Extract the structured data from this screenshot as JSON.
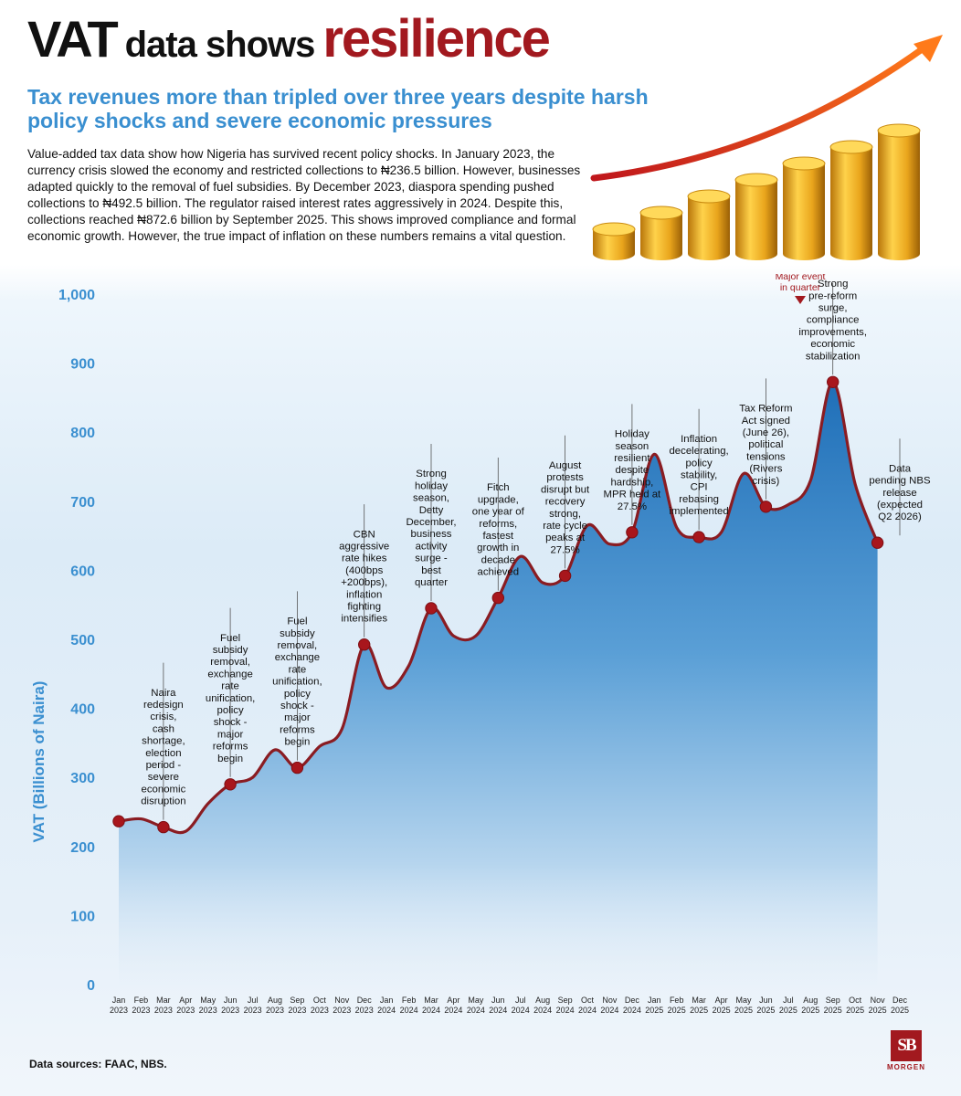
{
  "header": {
    "title_part1": "VAT",
    "title_part2": "data shows",
    "title_part3": "resilience",
    "subtitle": "Tax revenues more than tripled over three years despite harsh policy shocks and severe economic pressures",
    "lead": "Value-added tax data show how Nigeria has survived recent policy shocks. In January 2023, the currency crisis slowed the economy and restricted collections to ₦236.5 billion. However, businesses adapted quickly to the removal of fuel subsidies. By December 2023, diaspora spending pushed collections to ₦492.5 billion. The regulator raised interest rates aggressively in 2024. Despite this, collections reached ₦872.6 billion by September 2025. This shows improved compliance and formal economic growth. However, the true impact of inflation on these numbers remains a vital question."
  },
  "colors": {
    "accent_red": "#a2191f",
    "accent_blue": "#3a8fd0",
    "line": "#8a1c22",
    "marker": "#a8161c",
    "area_top": "#2f7fc6"
  },
  "icons": {
    "illustration": "rising-coin-stacks-with-arrow-icon",
    "logo": "sb-morgen-logo"
  },
  "chart_data": {
    "type": "area",
    "ylabel": "VAT (Billions of Naira)",
    "ylim": [
      0,
      1000
    ],
    "yticks": [
      "0",
      "100",
      "200",
      "300",
      "400",
      "500",
      "600",
      "700",
      "800",
      "900",
      "1,000"
    ],
    "grid": false,
    "categories": [
      [
        "Jan",
        "2023"
      ],
      [
        "Feb",
        "2023"
      ],
      [
        "Mar",
        "2023"
      ],
      [
        "Apr",
        "2023"
      ],
      [
        "May",
        "2023"
      ],
      [
        "Jun",
        "2023"
      ],
      [
        "Jul",
        "2023"
      ],
      [
        "Aug",
        "2023"
      ],
      [
        "Sep",
        "2023"
      ],
      [
        "Oct",
        "2023"
      ],
      [
        "Nov",
        "2023"
      ],
      [
        "Dec",
        "2023"
      ],
      [
        "Jan",
        "2024"
      ],
      [
        "Feb",
        "2024"
      ],
      [
        "Mar",
        "2024"
      ],
      [
        "Apr",
        "2024"
      ],
      [
        "May",
        "2024"
      ],
      [
        "Jun",
        "2024"
      ],
      [
        "Jul",
        "2024"
      ],
      [
        "Aug",
        "2024"
      ],
      [
        "Sep",
        "2024"
      ],
      [
        "Oct",
        "2024"
      ],
      [
        "Nov",
        "2024"
      ],
      [
        "Dec",
        "2024"
      ],
      [
        "Jan",
        "2025"
      ],
      [
        "Feb",
        "2025"
      ],
      [
        "Mar",
        "2025"
      ],
      [
        "Apr",
        "2025"
      ],
      [
        "May",
        "2025"
      ],
      [
        "Jun",
        "2025"
      ],
      [
        "Jul",
        "2025"
      ],
      [
        "Aug",
        "2025"
      ],
      [
        "Sep",
        "2025"
      ],
      [
        "Oct",
        "2025"
      ],
      [
        "Nov",
        "2025"
      ],
      [
        "Dec",
        "2025"
      ]
    ],
    "values": [
      236.5,
      240,
      228,
      222,
      262,
      290,
      300,
      340,
      314,
      345,
      370,
      492.5,
      430,
      462,
      545,
      505,
      505,
      560,
      620,
      582,
      592,
      665,
      638,
      655,
      768,
      662,
      648,
      655,
      740,
      692,
      695,
      730,
      872.6,
      725,
      640,
      null
    ],
    "markers": [
      0,
      2,
      5,
      8,
      11,
      14,
      17,
      20,
      23,
      26,
      29,
      32,
      34
    ],
    "annotations": [
      {
        "index": 2,
        "text": "Naira redesign crisis, cash shortage, election period - severe economic disruption"
      },
      {
        "index": 5,
        "text": "Fuel subsidy removal, exchange rate unification, policy shock - major reforms begin"
      },
      {
        "index": 8,
        "text": "Fuel subsidy removal, exchange rate unification, policy shock - major reforms begin"
      },
      {
        "index": 11,
        "text": "CBN aggressive rate hikes (400bps +200bps), inflation fighting intensifies"
      },
      {
        "index": 14,
        "text": "Strong holiday season, Detty December, business activity surge - best quarter"
      },
      {
        "index": 17,
        "text": "Fitch upgrade, one year of reforms, fastest growth in decade achieved"
      },
      {
        "index": 20,
        "text": "August protests disrupt but recovery strong, rate cycle peaks at 27.5%"
      },
      {
        "index": 23,
        "text": "Holiday season resilient despite hardship, MPR held at 27.5%"
      },
      {
        "index": 26,
        "text": "Inflation decelerating, policy stability, CPI rebasing implemented"
      },
      {
        "index": 29,
        "text": "Tax Reform Act signed (June 26), political tensions (Rivers crisis)"
      },
      {
        "index": 32,
        "text": "Strong pre-reform surge, compliance improvements, economic stabilization"
      },
      {
        "index": 35,
        "text": "Data pending NBS release (expected Q2 2026)"
      }
    ],
    "legend": {
      "label": "Major event in quarter",
      "placement": "top-right"
    }
  },
  "footer": {
    "source": "Data sources: FAAC, NBS.",
    "logo_mark": "SB",
    "logo_text": "MORGEN"
  }
}
